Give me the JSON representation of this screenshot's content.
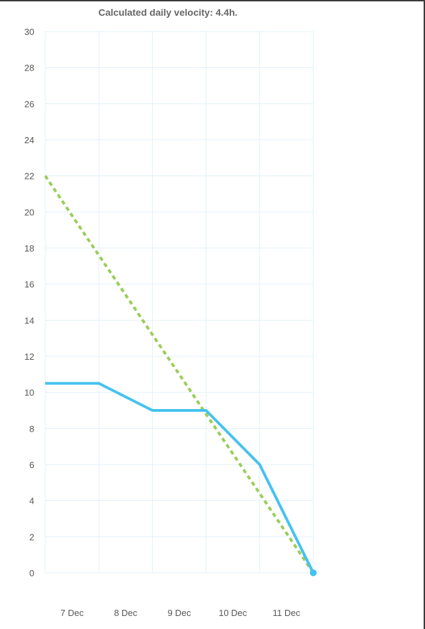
{
  "chart_data": {
    "type": "line",
    "title": "Calculated daily velocity: 4.4h.",
    "x_categories": [
      "7 Dec",
      "8 Dec",
      "9 Dec",
      "10 Dec",
      "11 Dec"
    ],
    "ylim": [
      0,
      30
    ],
    "y_ticks": [
      0,
      2,
      4,
      6,
      8,
      10,
      12,
      14,
      16,
      18,
      20,
      22,
      24,
      26,
      28,
      30
    ],
    "grid": true,
    "legend": "none",
    "series": [
      {
        "style": "solid",
        "color": "#45c2f0",
        "points": [
          {
            "x": 0,
            "y": 10.5
          },
          {
            "x": 1,
            "y": 10.5
          },
          {
            "x": 2,
            "y": 9
          },
          {
            "x": 3,
            "y": 9
          },
          {
            "x": 4,
            "y": 6
          },
          {
            "x": 5,
            "y": 0
          }
        ]
      },
      {
        "style": "dashed",
        "color": "#9acd5a",
        "points": [
          {
            "x": 0,
            "y": 22
          },
          {
            "x": 5,
            "y": 0
          }
        ]
      }
    ]
  },
  "colors": {
    "grid": "#e3f1f8",
    "tick_text": "#555555",
    "title_text": "#666666"
  }
}
